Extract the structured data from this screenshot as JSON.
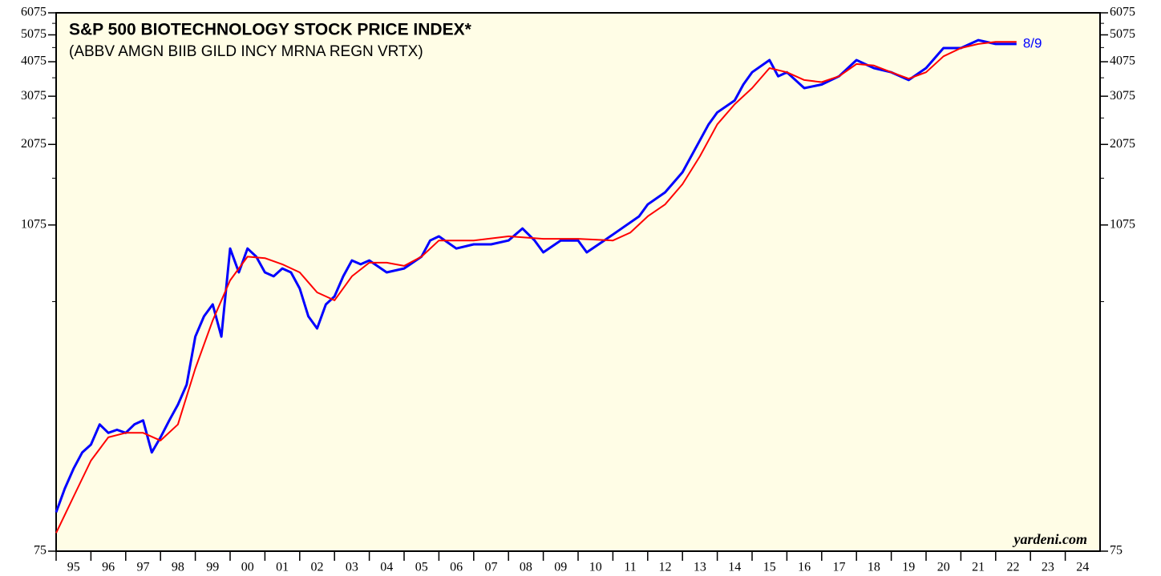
{
  "chart_data": {
    "type": "line",
    "title": "S&P 500 BIOTECHNOLOGY STOCK PRICE INDEX*",
    "subtitle": "(ABBV AMGN BIIB GILD INCY MRNA REGN VRTX)",
    "annotation": "8/9",
    "source": "yardeni.com",
    "log_scale": true,
    "background": "#fffde6",
    "ylim": [
      75,
      6075
    ],
    "yticks": [
      75,
      1075,
      2075,
      3075,
      4075,
      5075,
      6075
    ],
    "y_minor_ticks": [
      575,
      1575,
      2575,
      3575,
      4575,
      5575
    ],
    "xlim": [
      1995,
      2025
    ],
    "xticks": [
      {
        "value": 1995,
        "label": "95"
      },
      {
        "value": 1996,
        "label": "96"
      },
      {
        "value": 1997,
        "label": "97"
      },
      {
        "value": 1998,
        "label": "98"
      },
      {
        "value": 1999,
        "label": "99"
      },
      {
        "value": 2000,
        "label": "00"
      },
      {
        "value": 2001,
        "label": "01"
      },
      {
        "value": 2002,
        "label": "02"
      },
      {
        "value": 2003,
        "label": "03"
      },
      {
        "value": 2004,
        "label": "04"
      },
      {
        "value": 2005,
        "label": "05"
      },
      {
        "value": 2006,
        "label": "06"
      },
      {
        "value": 2007,
        "label": "07"
      },
      {
        "value": 2008,
        "label": "08"
      },
      {
        "value": 2009,
        "label": "09"
      },
      {
        "value": 2010,
        "label": "10"
      },
      {
        "value": 2011,
        "label": "11"
      },
      {
        "value": 2012,
        "label": "12"
      },
      {
        "value": 2013,
        "label": "13"
      },
      {
        "value": 2014,
        "label": "14"
      },
      {
        "value": 2015,
        "label": "15"
      },
      {
        "value": 2016,
        "label": "16"
      },
      {
        "value": 2017,
        "label": "17"
      },
      {
        "value": 2018,
        "label": "18"
      },
      {
        "value": 2019,
        "label": "19"
      },
      {
        "value": 2020,
        "label": "20"
      },
      {
        "value": 2021,
        "label": "21"
      },
      {
        "value": 2022,
        "label": "22"
      },
      {
        "value": 2023,
        "label": "23"
      },
      {
        "value": 2024,
        "label": "24"
      }
    ],
    "series": [
      {
        "color": "#0000ff",
        "x": [
          1995.0,
          1995.25,
          1995.5,
          1995.75,
          1996.0,
          1996.25,
          1996.5,
          1996.75,
          1997.0,
          1997.25,
          1997.5,
          1997.75,
          1998.0,
          1998.25,
          1998.5,
          1998.75,
          1999.0,
          1999.25,
          1999.5,
          1999.75,
          2000.0,
          2000.25,
          2000.5,
          2000.75,
          2001.0,
          2001.25,
          2001.5,
          2001.75,
          2002.0,
          2002.25,
          2002.5,
          2002.75,
          2003.0,
          2003.25,
          2003.5,
          2003.75,
          2004.0,
          2004.5,
          2005.0,
          2005.5,
          2005.75,
          2006.0,
          2006.5,
          2007.0,
          2007.5,
          2008.0,
          2008.4,
          2008.75,
          2009.0,
          2009.5,
          2010.0,
          2010.25,
          2010.75,
          2011.25,
          2011.75,
          2012.0,
          2012.5,
          2013.0,
          2013.5,
          2013.75,
          2014.0,
          2014.5,
          2014.75,
          2015.0,
          2015.5,
          2015.75,
          2016.0,
          2016.5,
          2017.0,
          2017.5,
          2018.0,
          2018.5,
          2019.0,
          2019.5,
          2020.0,
          2020.5,
          2021.0,
          2021.5,
          2022.0,
          2022.6
        ],
        "values": [
          103,
          125,
          147,
          168,
          179,
          211,
          197,
          202,
          197,
          211,
          218,
          168,
          190,
          218,
          248,
          292,
          432,
          510,
          562,
          432,
          887,
          730,
          887,
          830,
          730,
          707,
          754,
          730,
          640,
          510,
          462,
          562,
          600,
          707,
          805,
          780,
          805,
          730,
          754,
          830,
          947,
          980,
          887,
          918,
          918,
          947,
          1045,
          947,
          860,
          947,
          947,
          860,
          947,
          1045,
          1153,
          1271,
          1403,
          1653,
          2145,
          2445,
          2694,
          2970,
          3383,
          3740,
          4130,
          3620,
          3740,
          3286,
          3383,
          3620,
          4130,
          3870,
          3740,
          3510,
          3870,
          4557,
          4557,
          4860,
          4710,
          4710
        ]
      },
      {
        "color": "#ff0000",
        "x": [
          1995.0,
          1995.5,
          1996.0,
          1996.5,
          1997.0,
          1997.5,
          1998.0,
          1998.5,
          1999.0,
          1999.5,
          2000.0,
          2000.5,
          2001.0,
          2001.5,
          2002.0,
          2002.5,
          2003.0,
          2003.5,
          2004.0,
          2004.5,
          2005.0,
          2005.5,
          2006.0,
          2007.0,
          2008.0,
          2009.0,
          2010.0,
          2011.0,
          2011.5,
          2012.0,
          2012.5,
          2013.0,
          2013.5,
          2014.0,
          2014.5,
          2015.0,
          2015.5,
          2016.0,
          2016.5,
          2017.0,
          2017.5,
          2018.0,
          2018.5,
          2019.0,
          2019.5,
          2020.0,
          2020.5,
          2021.0,
          2021.5,
          2022.0,
          2022.6
        ],
        "values": [
          87,
          117,
          157,
          190,
          197,
          197,
          185,
          211,
          333,
          493,
          684,
          830,
          820,
          780,
          730,
          620,
          581,
          707,
          790,
          790,
          770,
          830,
          947,
          947,
          980,
          960,
          960,
          947,
          1010,
          1153,
          1271,
          1500,
          1883,
          2445,
          2880,
          3286,
          3870,
          3740,
          3510,
          3450,
          3620,
          4000,
          3950,
          3740,
          3550,
          3740,
          4260,
          4557,
          4710,
          4790,
          4790
        ]
      }
    ]
  }
}
